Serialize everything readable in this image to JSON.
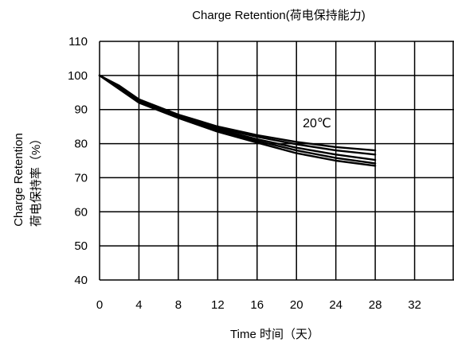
{
  "chart_data": {
    "type": "line",
    "title": "Charge Retention(荷电保持能力)",
    "xlabel": "Time 时间（天）",
    "ylabel": "Charge Retention",
    "ylabel_cn": "荷电保持率（%）",
    "xlim": [
      0,
      36
    ],
    "ylim": [
      40,
      110
    ],
    "xticks": [
      0,
      4,
      8,
      12,
      16,
      20,
      24,
      28,
      32
    ],
    "yticks": [
      40,
      50,
      60,
      70,
      80,
      90,
      100,
      110
    ],
    "grid": true,
    "annotation": "20℃",
    "x": [
      0,
      2,
      4,
      8,
      12,
      16,
      20,
      24,
      28
    ],
    "series": [
      {
        "values": [
          100,
          97.0,
          93.0,
          88.5,
          85.0,
          82.5,
          80.5,
          79.0,
          78.0
        ]
      },
      {
        "values": [
          100,
          96.8,
          92.8,
          88.3,
          84.6,
          82.0,
          79.8,
          78.0,
          76.8
        ]
      },
      {
        "values": [
          100,
          96.5,
          92.5,
          88.0,
          84.2,
          81.3,
          78.8,
          76.8,
          75.2
        ]
      },
      {
        "values": [
          100,
          96.3,
          92.3,
          87.8,
          83.8,
          80.8,
          78.0,
          75.8,
          74.2
        ]
      },
      {
        "values": [
          100,
          96.0,
          92.0,
          87.5,
          83.5,
          80.3,
          77.2,
          75.0,
          73.5
        ]
      }
    ]
  }
}
